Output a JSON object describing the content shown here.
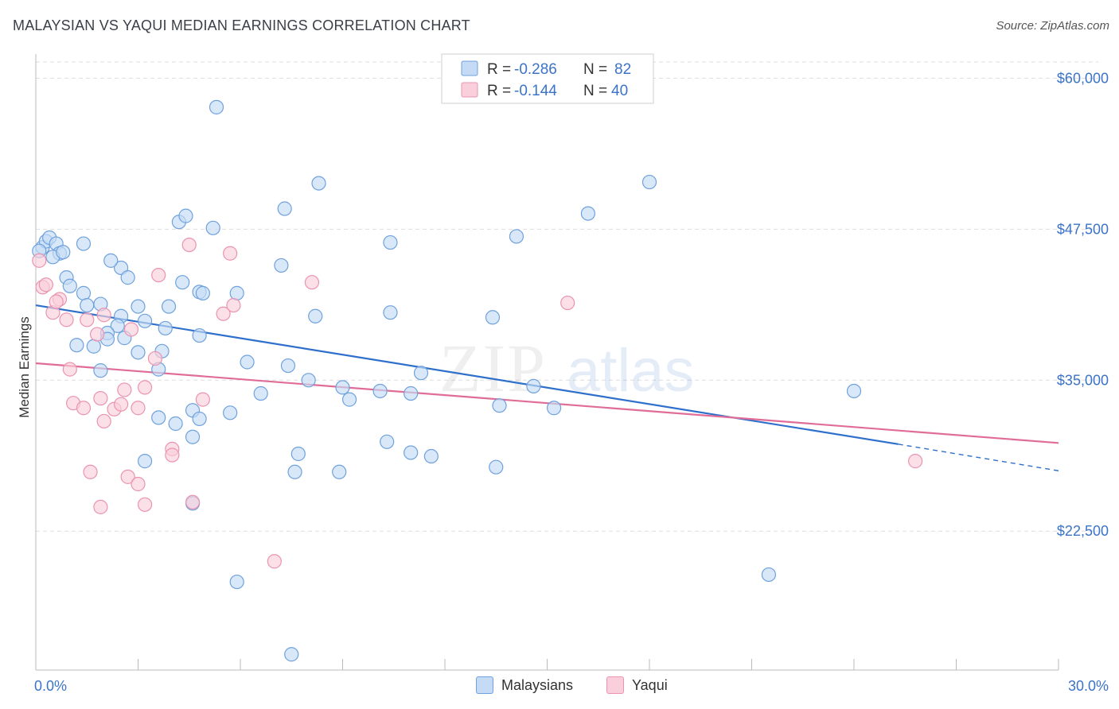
{
  "title": "MALAYSIAN VS YAQUI MEDIAN EARNINGS CORRELATION CHART",
  "source": "Source: ZipAtlas.com",
  "watermark": {
    "zip": "ZIP",
    "atlas": "atlas"
  },
  "legend_top": {
    "rows": [
      {
        "r_label": "R =",
        "r_value": "-0.286",
        "n_label": "N =",
        "n_value": "82",
        "color": "#6fa8e6"
      },
      {
        "r_label": "R =",
        "r_value": "-0.144",
        "n_label": "N =",
        "n_value": "40",
        "color": "#f08bab"
      }
    ]
  },
  "legend_bottom": {
    "series1": "Malaysians",
    "series2": "Yaqui"
  },
  "colors": {
    "blue_fill": "#c5dbf5",
    "blue_stroke": "#6fa1dd",
    "blue_line": "#2f6fcc",
    "pink_fill": "#f9cfdc",
    "pink_stroke": "#eb93b0",
    "pink_line": "#e06d97",
    "axis_text": "#3b73c7",
    "grid": "#dddddd"
  },
  "chart_data": {
    "type": "scatter",
    "title": "MALAYSIAN VS YAQUI MEDIAN EARNINGS CORRELATION CHART",
    "xlabel": "",
    "ylabel": "Median Earnings",
    "xlim": [
      0,
      30
    ],
    "ylim": [
      11000,
      62000
    ],
    "x_tick_labels": [
      "0.0%",
      "30.0%"
    ],
    "y_ticks": [
      22500,
      35000,
      47500,
      60000
    ],
    "y_tick_labels": [
      "$22,500",
      "$35,000",
      "$47,500",
      "$60,000"
    ],
    "series": [
      {
        "name": "Malaysians",
        "r": -0.286,
        "n": 82,
        "trend": {
          "x0": 0,
          "y0": 41200,
          "x1": 25.3,
          "y1": 29700,
          "dash_to_x": 30,
          "dash_to_y": 27500
        },
        "points": [
          [
            0.2,
            46000
          ],
          [
            0.3,
            46500
          ],
          [
            0.4,
            46800
          ],
          [
            0.6,
            46300
          ],
          [
            0.7,
            45500
          ],
          [
            1.4,
            46300
          ],
          [
            0.9,
            43500
          ],
          [
            1.0,
            42800
          ],
          [
            1.4,
            42200
          ],
          [
            1.5,
            41200
          ],
          [
            1.9,
            41300
          ],
          [
            2.5,
            44300
          ],
          [
            2.7,
            43500
          ],
          [
            2.2,
            44900
          ],
          [
            3.0,
            41100
          ],
          [
            3.9,
            41100
          ],
          [
            2.5,
            40300
          ],
          [
            3.2,
            39900
          ],
          [
            2.4,
            39500
          ],
          [
            3.8,
            39300
          ],
          [
            2.1,
            38900
          ],
          [
            2.1,
            38400
          ],
          [
            2.6,
            38500
          ],
          [
            1.2,
            37900
          ],
          [
            1.7,
            37800
          ],
          [
            3.0,
            37300
          ],
          [
            3.7,
            37400
          ],
          [
            3.6,
            35900
          ],
          [
            1.9,
            35800
          ],
          [
            4.8,
            38700
          ],
          [
            4.2,
            48100
          ],
          [
            4.4,
            48600
          ],
          [
            5.2,
            47600
          ],
          [
            4.3,
            43100
          ],
          [
            4.8,
            42300
          ],
          [
            4.9,
            42200
          ],
          [
            5.9,
            42200
          ],
          [
            5.3,
            57600
          ],
          [
            6.2,
            36500
          ],
          [
            7.2,
            44500
          ],
          [
            7.3,
            49200
          ],
          [
            8.3,
            51300
          ],
          [
            7.4,
            36200
          ],
          [
            8.2,
            40300
          ],
          [
            10.4,
            46400
          ],
          [
            10.4,
            40600
          ],
          [
            9.0,
            34400
          ],
          [
            8.0,
            35000
          ],
          [
            9.2,
            33400
          ],
          [
            10.1,
            34100
          ],
          [
            11.0,
            33900
          ],
          [
            11.3,
            35600
          ],
          [
            4.6,
            32500
          ],
          [
            5.7,
            32300
          ],
          [
            3.6,
            31900
          ],
          [
            4.1,
            31400
          ],
          [
            4.8,
            31800
          ],
          [
            4.6,
            30300
          ],
          [
            6.6,
            33900
          ],
          [
            3.2,
            28300
          ],
          [
            10.3,
            29900
          ],
          [
            11.0,
            29000
          ],
          [
            11.6,
            28700
          ],
          [
            7.7,
            28900
          ],
          [
            7.6,
            27400
          ],
          [
            8.9,
            27400
          ],
          [
            4.6,
            24800
          ],
          [
            5.9,
            18300
          ],
          [
            7.5,
            12300
          ],
          [
            13.4,
            40200
          ],
          [
            14.1,
            46900
          ],
          [
            13.6,
            32900
          ],
          [
            13.5,
            27800
          ],
          [
            14.6,
            34500
          ],
          [
            15.2,
            32700
          ],
          [
            16.2,
            48800
          ],
          [
            18.0,
            51400
          ],
          [
            21.5,
            18900
          ],
          [
            24.0,
            34100
          ],
          [
            0.1,
            45700
          ],
          [
            0.5,
            45200
          ],
          [
            0.8,
            45600
          ]
        ]
      },
      {
        "name": "Yaqui",
        "r": -0.144,
        "n": 40,
        "trend": {
          "x0": 0,
          "y0": 36400,
          "x1": 30,
          "y1": 29800
        },
        "points": [
          [
            0.1,
            44900
          ],
          [
            0.2,
            42700
          ],
          [
            0.3,
            42900
          ],
          [
            0.5,
            40600
          ],
          [
            0.7,
            41700
          ],
          [
            0.6,
            41500
          ],
          [
            0.9,
            40000
          ],
          [
            1.0,
            35900
          ],
          [
            1.1,
            33100
          ],
          [
            1.4,
            32700
          ],
          [
            1.5,
            40000
          ],
          [
            1.8,
            38800
          ],
          [
            2.0,
            40400
          ],
          [
            1.9,
            33500
          ],
          [
            2.0,
            31600
          ],
          [
            2.3,
            32600
          ],
          [
            2.6,
            34200
          ],
          [
            2.5,
            33000
          ],
          [
            2.8,
            39200
          ],
          [
            3.0,
            32700
          ],
          [
            3.2,
            34400
          ],
          [
            3.5,
            36800
          ],
          [
            3.6,
            43700
          ],
          [
            4.5,
            46200
          ],
          [
            5.7,
            45500
          ],
          [
            5.5,
            40500
          ],
          [
            5.8,
            41200
          ],
          [
            4.0,
            29300
          ],
          [
            4.0,
            28800
          ],
          [
            4.9,
            33400
          ],
          [
            1.6,
            27400
          ],
          [
            1.9,
            24500
          ],
          [
            2.7,
            27000
          ],
          [
            3.0,
            26400
          ],
          [
            3.2,
            24700
          ],
          [
            4.6,
            24900
          ],
          [
            7.0,
            20000
          ],
          [
            8.1,
            43100
          ],
          [
            15.6,
            41400
          ],
          [
            25.8,
            28300
          ]
        ]
      }
    ]
  }
}
